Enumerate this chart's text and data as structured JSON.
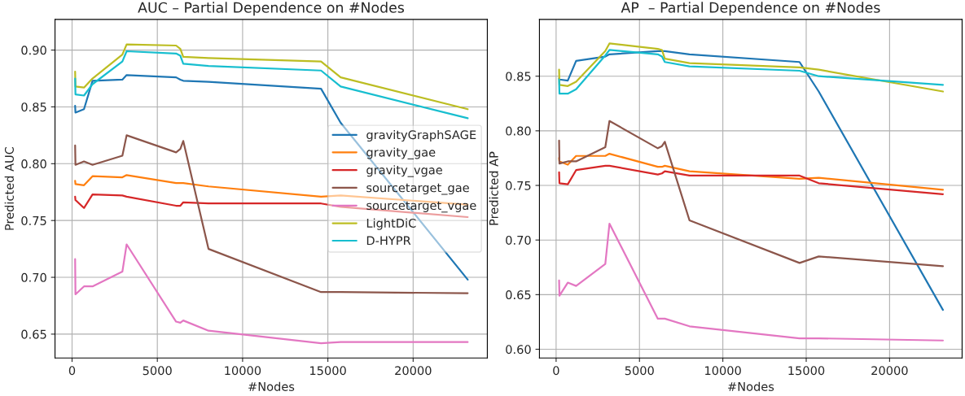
{
  "chart_data": [
    {
      "type": "line",
      "title": "AUC – Partial Dependence on #Nodes",
      "xlabel": "#Nodes",
      "ylabel": "Predicted AUC",
      "x": [
        180,
        200,
        700,
        1200,
        2950,
        3200,
        6100,
        6350,
        6520,
        8000,
        14600,
        15750,
        23200
      ],
      "xlim": [
        -1000,
        24350
      ],
      "xticks": [
        0,
        5000,
        10000,
        15000,
        20000
      ],
      "ylim": [
        0.629,
        0.927
      ],
      "yticks": [
        0.65,
        {
          "value": 0.7,
          "label": "0.70"
        },
        0.75,
        {
          "value": 0.8,
          "label": "0.80"
        },
        0.85,
        {
          "value": 0.9,
          "label": "0.90"
        }
      ],
      "grid": true,
      "legend": "right",
      "series": [
        {
          "name": "gravityGraphSAGE",
          "color": "#1f77b4",
          "values": [
            0.851,
            0.845,
            0.848,
            0.873,
            0.874,
            0.878,
            0.876,
            0.874,
            0.873,
            0.872,
            0.866,
            0.836,
            0.698
          ]
        },
        {
          "name": "gravity_gae",
          "color": "#ff7f0e",
          "values": [
            0.785,
            0.782,
            0.781,
            0.789,
            0.788,
            0.79,
            0.783,
            0.783,
            0.783,
            0.78,
            0.771,
            0.772,
            0.764
          ]
        },
        {
          "name": "gravity_vgae",
          "color": "#d62728",
          "values": [
            0.771,
            0.768,
            0.761,
            0.773,
            0.772,
            0.771,
            0.763,
            0.763,
            0.766,
            0.765,
            0.765,
            0.762,
            0.753
          ]
        },
        {
          "name": "sourcetarget_gae",
          "color": "#8c564b",
          "values": [
            0.816,
            0.799,
            0.802,
            0.799,
            0.807,
            0.825,
            0.81,
            0.813,
            0.82,
            0.725,
            0.687,
            0.687,
            0.686
          ]
        },
        {
          "name": "sourcetarget_vgae",
          "color": "#e377c2",
          "values": [
            0.716,
            0.685,
            0.692,
            0.692,
            0.705,
            0.729,
            0.661,
            0.66,
            0.662,
            0.653,
            0.642,
            0.643,
            0.643
          ]
        },
        {
          "name": "LightDiC",
          "color": "#bcbd22",
          "values": [
            0.881,
            0.868,
            0.867,
            0.875,
            0.896,
            0.905,
            0.904,
            0.901,
            0.894,
            0.893,
            0.89,
            0.876,
            0.848
          ]
        },
        {
          "name": "D-HYPR",
          "color": "#17becf",
          "values": [
            0.875,
            0.861,
            0.86,
            0.87,
            0.89,
            0.899,
            0.897,
            0.895,
            0.888,
            0.886,
            0.882,
            0.868,
            0.84
          ]
        }
      ]
    },
    {
      "type": "line",
      "title": "AP  – Partial Dependence on #Nodes",
      "xlabel": "#Nodes",
      "ylabel": "Predicted AP",
      "x": [
        180,
        200,
        700,
        1200,
        2950,
        3200,
        6100,
        6350,
        6520,
        8000,
        14600,
        15750,
        23200
      ],
      "xlim": [
        -1000,
        24350
      ],
      "xticks": [
        0,
        5000,
        10000,
        15000,
        20000
      ],
      "ylim": [
        0.592,
        0.902
      ],
      "yticks": [
        {
          "value": 0.6,
          "label": "0.60"
        },
        0.65,
        {
          "value": 0.7,
          "label": "0.70"
        },
        0.75,
        {
          "value": 0.8,
          "label": "0.80"
        },
        0.85
      ],
      "grid": true,
      "series": [
        {
          "color": "#1f77b4",
          "values": [
            0.848,
            0.847,
            0.846,
            0.864,
            0.868,
            0.87,
            0.873,
            0.873,
            0.873,
            0.87,
            0.863,
            0.836,
            0.636
          ]
        },
        {
          "color": "#ff7f0e",
          "values": [
            0.775,
            0.772,
            0.769,
            0.777,
            0.777,
            0.779,
            0.767,
            0.767,
            0.768,
            0.763,
            0.756,
            0.757,
            0.746
          ]
        },
        {
          "color": "#d62728",
          "values": [
            0.762,
            0.752,
            0.751,
            0.764,
            0.768,
            0.768,
            0.76,
            0.761,
            0.763,
            0.759,
            0.759,
            0.752,
            0.742
          ]
        },
        {
          "color": "#8c564b",
          "values": [
            0.791,
            0.77,
            0.772,
            0.772,
            0.785,
            0.809,
            0.784,
            0.786,
            0.79,
            0.718,
            0.679,
            0.685,
            0.676
          ]
        },
        {
          "color": "#e377c2",
          "values": [
            0.663,
            0.649,
            0.661,
            0.658,
            0.678,
            0.715,
            0.628,
            0.628,
            0.628,
            0.621,
            0.61,
            0.61,
            0.608
          ]
        },
        {
          "color": "#bcbd22",
          "values": [
            0.856,
            0.842,
            0.841,
            0.845,
            0.873,
            0.88,
            0.875,
            0.874,
            0.866,
            0.862,
            0.858,
            0.856,
            0.836
          ]
        },
        {
          "color": "#17becf",
          "values": [
            0.847,
            0.834,
            0.834,
            0.838,
            0.869,
            0.874,
            0.87,
            0.868,
            0.863,
            0.859,
            0.855,
            0.85,
            0.842
          ]
        }
      ]
    }
  ]
}
